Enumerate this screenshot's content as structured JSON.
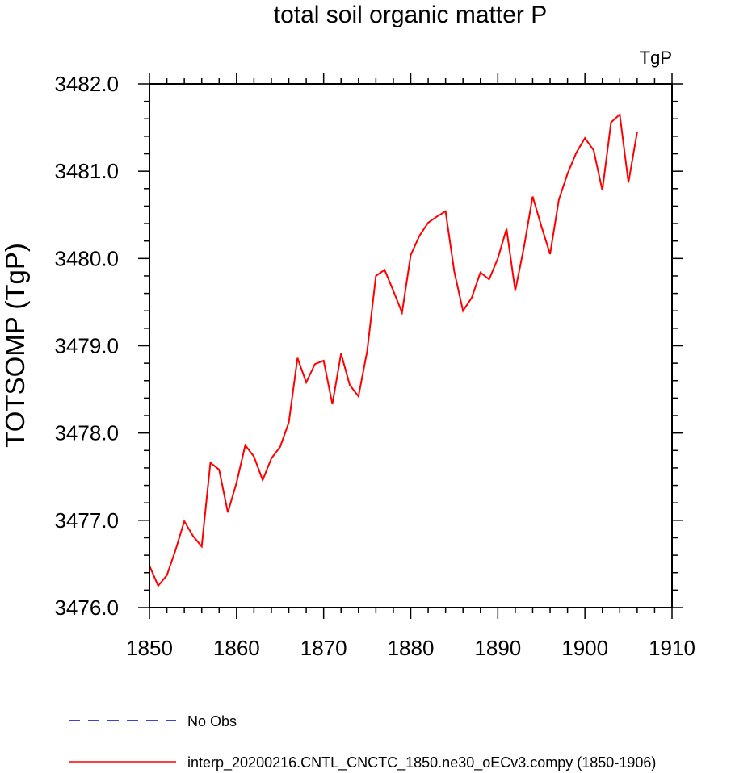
{
  "chart_data": {
    "type": "line",
    "title": "total soil organic matter P",
    "units_label": "TgP",
    "xlabel": "",
    "ylabel": "TOTSOMP  (TgP)",
    "xlim": [
      1850,
      1910
    ],
    "ylim": [
      3476.0,
      3482.0
    ],
    "x_major_ticks": [
      1850,
      1860,
      1870,
      1880,
      1890,
      1900,
      1910
    ],
    "x_tick_labels": [
      "1850",
      "1860",
      "1870",
      "1880",
      "1890",
      "1900",
      "1910"
    ],
    "y_major_ticks": [
      3476.0,
      3477.0,
      3478.0,
      3479.0,
      3480.0,
      3481.0,
      3482.0
    ],
    "y_tick_labels": [
      "3476.0",
      "3477.0",
      "3478.0",
      "3479.0",
      "3480.0",
      "3481.0",
      "3482.0"
    ],
    "x_minor_step": 2,
    "y_minor_step": 0.2,
    "series": [
      {
        "name": "interp_20200216.CNTL_CNCTC_1850.ne30_oECv3.compy (1850-1906)",
        "color": "#ff0000",
        "dash": "solid",
        "x": [
          1850,
          1851,
          1852,
          1853,
          1854,
          1855,
          1856,
          1857,
          1858,
          1859,
          1860,
          1861,
          1862,
          1863,
          1864,
          1865,
          1866,
          1867,
          1868,
          1869,
          1870,
          1871,
          1872,
          1873,
          1874,
          1875,
          1876,
          1877,
          1878,
          1879,
          1880,
          1881,
          1882,
          1883,
          1884,
          1885,
          1886,
          1887,
          1888,
          1889,
          1890,
          1891,
          1892,
          1893,
          1894,
          1895,
          1896,
          1897,
          1898,
          1899,
          1900,
          1901,
          1902,
          1903,
          1904,
          1905,
          1906
        ],
        "values": [
          3476.48,
          3476.25,
          3476.37,
          3476.66,
          3476.99,
          3476.82,
          3476.7,
          3477.66,
          3477.58,
          3477.09,
          3477.43,
          3477.86,
          3477.73,
          3477.46,
          3477.71,
          3477.84,
          3478.12,
          3478.86,
          3478.58,
          3478.79,
          3478.83,
          3478.33,
          3478.91,
          3478.55,
          3478.42,
          3478.94,
          3479.8,
          3479.87,
          3479.63,
          3479.38,
          3480.04,
          3480.26,
          3480.41,
          3480.48,
          3480.54,
          3479.85,
          3479.4,
          3479.55,
          3479.84,
          3479.76,
          3480.0,
          3480.34,
          3479.63,
          3480.13,
          3480.71,
          3480.37,
          3480.05,
          3480.67,
          3480.97,
          3481.21,
          3481.38,
          3481.24,
          3480.78,
          3481.56,
          3481.65,
          3480.87,
          3481.45
        ]
      },
      {
        "name": "No Obs",
        "color": "#0000cc",
        "dash": "dashed",
        "x": [],
        "values": []
      }
    ],
    "legend_position": "bottom-left"
  }
}
